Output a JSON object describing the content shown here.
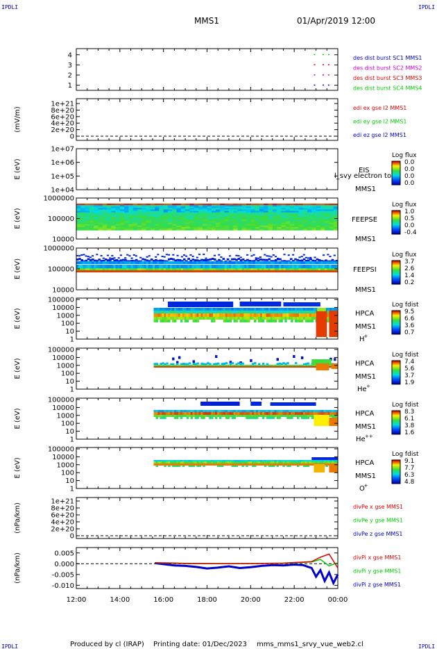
{
  "corner_labels": {
    "top_left": "IPDLI",
    "top_right": "IPDLI",
    "bottom_left": "IPDLI",
    "bottom_right": "IPDLI"
  },
  "header": {
    "spacecraft": "MMS1",
    "datetime": "01/Apr/2019 12:00"
  },
  "footer": {
    "produced_by": "Produced by cl (IRAP)",
    "printing_date": "Printing date: 01/Dec/2023",
    "file": "mms_mms1_srvy_vue_web2.cl"
  },
  "time_axis": {
    "ticks": [
      "12:00",
      "14:00",
      "16:00",
      "18:00",
      "20:00",
      "22:00",
      "00:00"
    ]
  },
  "colors": {
    "red": "#dd0000",
    "green": "#00cc00",
    "blue": "#0000cc",
    "magenta": "#cc00cc",
    "axis": "#000000"
  },
  "chart_data": [
    {
      "type": "scatter",
      "name": "des-dist-burst",
      "y_ticks": [
        "1",
        "2",
        "3",
        "4"
      ],
      "ylim": [
        0.5,
        4.6
      ],
      "legend": [
        {
          "text": "des dist burst SC1 MMS1",
          "color": "#0000cc"
        },
        {
          "text": "des dist burst SC2 MMS2",
          "color": "#cc00cc"
        },
        {
          "text": "des dist burst SC3 MMS3",
          "color": "#dd0000"
        },
        {
          "text": "des dist burst SC4 MMS4",
          "color": "#00cc00"
        }
      ],
      "series": [
        {
          "sc": 4,
          "color": "#00cc00",
          "x": [
            22.9,
            23.3,
            23.55
          ]
        },
        {
          "sc": 3,
          "color": "#dd0000",
          "x": [
            22.9,
            23.3,
            23.55
          ]
        },
        {
          "sc": 2,
          "color": "#cc00cc",
          "x": [
            22.9,
            23.3,
            23.55
          ]
        },
        {
          "sc": 1,
          "color": "#0000cc",
          "x": [
            22.9,
            23.3,
            23.55
          ]
        }
      ]
    },
    {
      "type": "line",
      "name": "edi-e-field",
      "ylabel": "(mV/m)",
      "y_ticks": [
        "0",
        "2e+20",
        "4e+20",
        "6e+20",
        "8e+20",
        "1e+21"
      ],
      "legend": [
        {
          "text": "edi ex gse l2 MMS1",
          "color": "#dd0000"
        },
        {
          "text": "edi ey gse l2 MMS1",
          "color": "#00cc00"
        },
        {
          "text": "edi ez gse l2 MMS1",
          "color": "#0000cc"
        }
      ]
    },
    {
      "type": "heatmap",
      "name": "eis",
      "ylabel": "E (eV)",
      "y_ticks": [
        "1e+04",
        "1e+05",
        "1e+06",
        "1e+07"
      ],
      "labels": [
        "EIS",
        "MMS1"
      ],
      "overlay_text": "l_svy electron to",
      "colorbar": {
        "title": "Log flux",
        "ticks": [
          "0.0",
          "0.0",
          "0.0",
          "0.0"
        ]
      }
    },
    {
      "type": "heatmap",
      "name": "feeps-electron",
      "ylabel": "E (eV)",
      "y_ticks": [
        "1000000",
        "100000",
        "10000"
      ],
      "labels": [
        "FEEPSE",
        "MMS1"
      ],
      "colorbar": {
        "title": "Log flux",
        "ticks": [
          "1.0",
          "0.5",
          "0.0",
          "-0.4"
        ]
      }
    },
    {
      "type": "heatmap",
      "name": "feeps-ion",
      "ylabel": "E (eV)",
      "y_ticks": [
        "1000000",
        "100000",
        "10000"
      ],
      "labels": [
        "FEEPSI",
        "MMS1"
      ],
      "colorbar": {
        "title": "Log flux",
        "ticks": [
          "3.7",
          "2.6",
          "1.4",
          "0.2"
        ]
      }
    },
    {
      "type": "heatmap",
      "name": "hpca-h",
      "ylabel": "E (eV)",
      "y_ticks": [
        "100000",
        "10000",
        "1000",
        "100",
        "10",
        "1"
      ],
      "labels": [
        "HPCA",
        "MMS1"
      ],
      "species": "H",
      "charge": "+",
      "colorbar": {
        "title": "Log fdist",
        "ticks": [
          "9.5",
          "6.6",
          "3.6",
          "0.7"
        ]
      }
    },
    {
      "type": "heatmap",
      "name": "hpca-he",
      "ylabel": "E (eV)",
      "y_ticks": [
        "100000",
        "10000",
        "1000",
        "100",
        "10",
        "1"
      ],
      "labels": [
        "HPCA",
        "MMS1"
      ],
      "species": "He",
      "charge": "+",
      "colorbar": {
        "title": "Log fdist",
        "ticks": [
          "7.4",
          "5.6",
          "3.7",
          "1.9"
        ]
      }
    },
    {
      "type": "heatmap",
      "name": "hpca-he2",
      "ylabel": "E (eV)",
      "y_ticks": [
        "100000",
        "10000",
        "1000",
        "100",
        "10",
        "1"
      ],
      "labels": [
        "HPCA",
        "MMS1"
      ],
      "species": "He",
      "charge": "++",
      "colorbar": {
        "title": "Log fdist",
        "ticks": [
          "8.3",
          "6.1",
          "3.8",
          "1.6"
        ]
      }
    },
    {
      "type": "heatmap",
      "name": "hpca-o",
      "ylabel": "E (eV)",
      "y_ticks": [
        "100000",
        "10000",
        "1000",
        "100",
        "10",
        "1"
      ],
      "labels": [
        "HPCA",
        "MMS1"
      ],
      "species": "O",
      "charge": "+",
      "colorbar": {
        "title": "Log fdist",
        "ticks": [
          "9.1",
          "7.7",
          "6.3",
          "4.8"
        ]
      }
    },
    {
      "type": "line",
      "name": "divpe",
      "ylabel": "(nPa/km)",
      "y_ticks": [
        "0",
        "2e+20",
        "4e+20",
        "6e+20",
        "8e+20",
        "1e+21"
      ],
      "legend": [
        {
          "text": "divPe x gse MMS1",
          "color": "#dd0000"
        },
        {
          "text": "divPe y gse MMS1",
          "color": "#00cc00"
        },
        {
          "text": "divPe z gse MMS1",
          "color": "#0000cc"
        }
      ]
    },
    {
      "type": "line",
      "name": "divpi",
      "ylabel": "(nPa/km)",
      "y_ticks": [
        "-0.010",
        "-0.005",
        "0.000",
        "0.005"
      ],
      "ylim": [
        -0.0115,
        0.0075
      ],
      "legend": [
        {
          "text": "divPi x gse MMS1",
          "color": "#dd0000"
        },
        {
          "text": "divPi y gse MMS1",
          "color": "#00cc00"
        },
        {
          "text": "divPi z gse MMS1",
          "color": "#0000cc"
        }
      ],
      "series": [
        {
          "name": "divPi z gse MMS1",
          "color": "#0000cc",
          "x": [
            15.6,
            16.0,
            16.5,
            17.0,
            17.5,
            18.0,
            18.5,
            19.0,
            19.5,
            20.0,
            20.5,
            21.0,
            21.5,
            22.0,
            22.4,
            22.8,
            23.0,
            23.2,
            23.4,
            23.6,
            23.8,
            24.0
          ],
          "y": [
            0.0003,
            -0.0002,
            -0.0008,
            -0.001,
            -0.0015,
            -0.0022,
            -0.0018,
            -0.0012,
            -0.002,
            -0.0016,
            -0.001,
            -0.0006,
            -0.0008,
            -0.0004,
            -0.0006,
            -0.002,
            -0.006,
            -0.003,
            -0.008,
            -0.004,
            -0.009,
            -0.005
          ]
        },
        {
          "name": "divPi y gse MMS1",
          "color": "#00cc00",
          "x": [
            15.6,
            17.0,
            18.5,
            20.0,
            21.5,
            22.8,
            23.2,
            23.6,
            24.0
          ],
          "y": [
            0.0004,
            0.0001,
            0.0,
            0.0001,
            0.0002,
            0.0008,
            0.002,
            -0.001,
            0.0005
          ]
        },
        {
          "name": "divPi x gse MMS1",
          "color": "#dd0000",
          "x": [
            15.6,
            17.0,
            18.5,
            20.0,
            21.5,
            22.8,
            23.2,
            23.6,
            24.0
          ],
          "y": [
            0.0005,
            0.0002,
            0.0001,
            0.0001,
            0.0003,
            0.001,
            0.003,
            0.0045,
            -0.002
          ]
        }
      ]
    }
  ]
}
